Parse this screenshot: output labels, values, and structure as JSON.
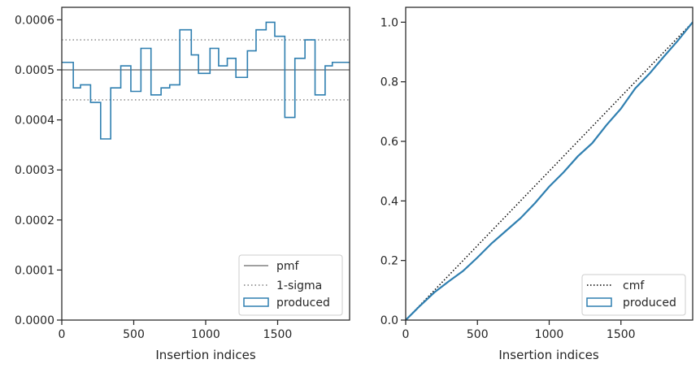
{
  "colors": {
    "produced": "#2f7fb0",
    "pmf": "#808080",
    "sigma": "#808080",
    "cmf": "#000000",
    "axes": "#262626"
  },
  "chart_data": [
    {
      "type": "line",
      "style": "step-histogram",
      "xlabel": "Insertion indices",
      "ylabel": "",
      "xlim": [
        0,
        2000
      ],
      "ylim": [
        0,
        0.000625
      ],
      "xticks": [
        0,
        500,
        1000,
        1500
      ],
      "xtick_labels": [
        "0",
        "500",
        "1000",
        "1500"
      ],
      "yticks": [
        0,
        0.0001,
        0.0002,
        0.0003,
        0.0004,
        0.0005,
        0.0006
      ],
      "ytick_labels": [
        "0.0000",
        "0.0001",
        "0.0002",
        "0.0003",
        "0.0004",
        "0.0005",
        "0.0006"
      ],
      "legend_position": "lower right",
      "series": [
        {
          "name": "pmf",
          "kind": "hline",
          "y": 0.0005,
          "color": "#808080",
          "dash": "solid"
        },
        {
          "name": "1-sigma",
          "kind": "hlines",
          "y": [
            0.00056,
            0.00044
          ],
          "color": "#808080",
          "dash": "dotted"
        },
        {
          "name": "produced",
          "kind": "step",
          "color": "#2f7fb0",
          "bin_edges": [
            0,
            80,
            130,
            200,
            270,
            340,
            410,
            480,
            550,
            620,
            690,
            750,
            820,
            900,
            950,
            1030,
            1090,
            1150,
            1210,
            1290,
            1350,
            1420,
            1480,
            1550,
            1620,
            1690,
            1760,
            1830,
            1880,
            1960,
            2000
          ],
          "values": [
            0.000515,
            0.000464,
            0.00047,
            0.000435,
            0.000362,
            0.000464,
            0.000508,
            0.000457,
            0.000543,
            0.00045,
            0.000464,
            0.00047,
            0.00058,
            0.00053,
            0.000493,
            0.000543,
            0.000508,
            0.000523,
            0.000485,
            0.000538,
            0.00058,
            0.000595,
            0.000567,
            0.000405,
            0.000523,
            0.00056,
            0.00045,
            0.000508,
            0.000515,
            0.000515
          ]
        }
      ]
    },
    {
      "type": "line",
      "xlabel": "Insertion indices",
      "ylabel": "",
      "xlim": [
        0,
        2000
      ],
      "ylim": [
        0,
        1.05
      ],
      "xticks": [
        0,
        500,
        1000,
        1500
      ],
      "xtick_labels": [
        "0",
        "500",
        "1000",
        "1500"
      ],
      "yticks": [
        0,
        0.2,
        0.4,
        0.6,
        0.8,
        1.0
      ],
      "ytick_labels": [
        "0.0",
        "0.2",
        "0.4",
        "0.6",
        "0.8",
        "1.0"
      ],
      "legend_position": "lower right",
      "series": [
        {
          "name": "cmf",
          "kind": "line",
          "color": "#000000",
          "dash": "dotted",
          "x": [
            0,
            2000
          ],
          "y": [
            0,
            1.0
          ]
        },
        {
          "name": "produced",
          "kind": "line",
          "color": "#2f7fb0",
          "x": [
            0,
            100,
            200,
            300,
            400,
            500,
            600,
            700,
            800,
            900,
            1000,
            1100,
            1200,
            1300,
            1400,
            1500,
            1600,
            1700,
            1800,
            1900,
            2000
          ],
          "y": [
            0,
            0.048,
            0.093,
            0.13,
            0.165,
            0.21,
            0.258,
            0.3,
            0.342,
            0.392,
            0.448,
            0.496,
            0.55,
            0.594,
            0.655,
            0.71,
            0.778,
            0.828,
            0.885,
            0.94,
            1.0
          ]
        }
      ]
    }
  ]
}
